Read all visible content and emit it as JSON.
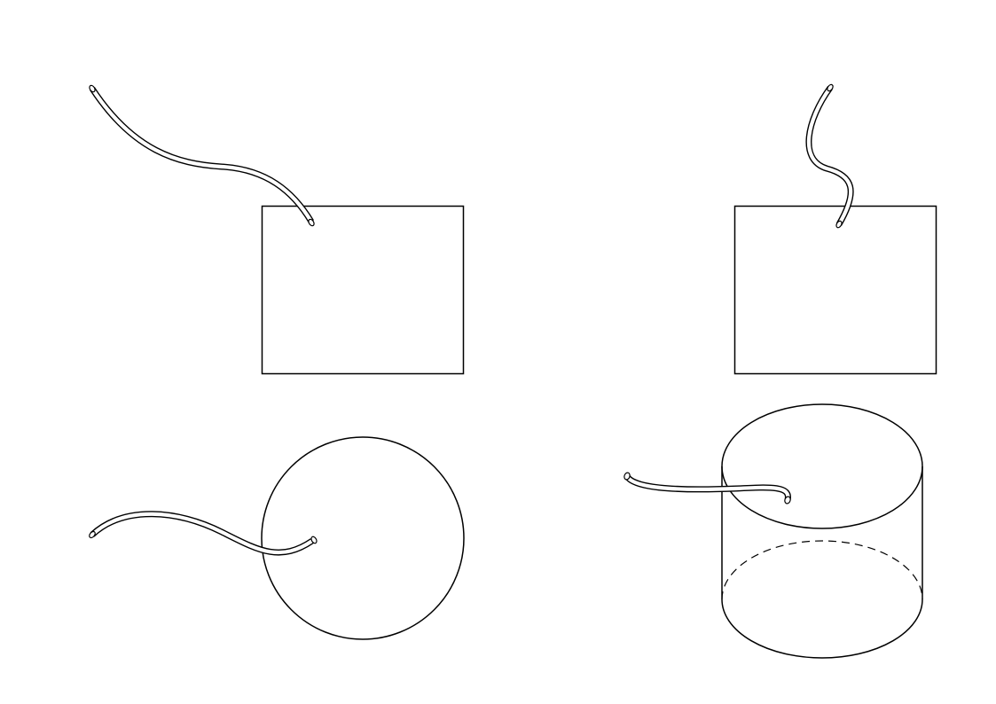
{
  "figures": [
    {
      "id": "rect-wavy-tube",
      "shape": "rectangle",
      "attachment": "tube"
    },
    {
      "id": "rect-s-tube",
      "shape": "rectangle",
      "attachment": "tube"
    },
    {
      "id": "circle-tube",
      "shape": "circle",
      "attachment": "tube"
    },
    {
      "id": "cylinder-tube",
      "shape": "cylinder",
      "attachment": "tube"
    }
  ],
  "colors": {
    "line": "#000000",
    "background": "#ffffff"
  }
}
